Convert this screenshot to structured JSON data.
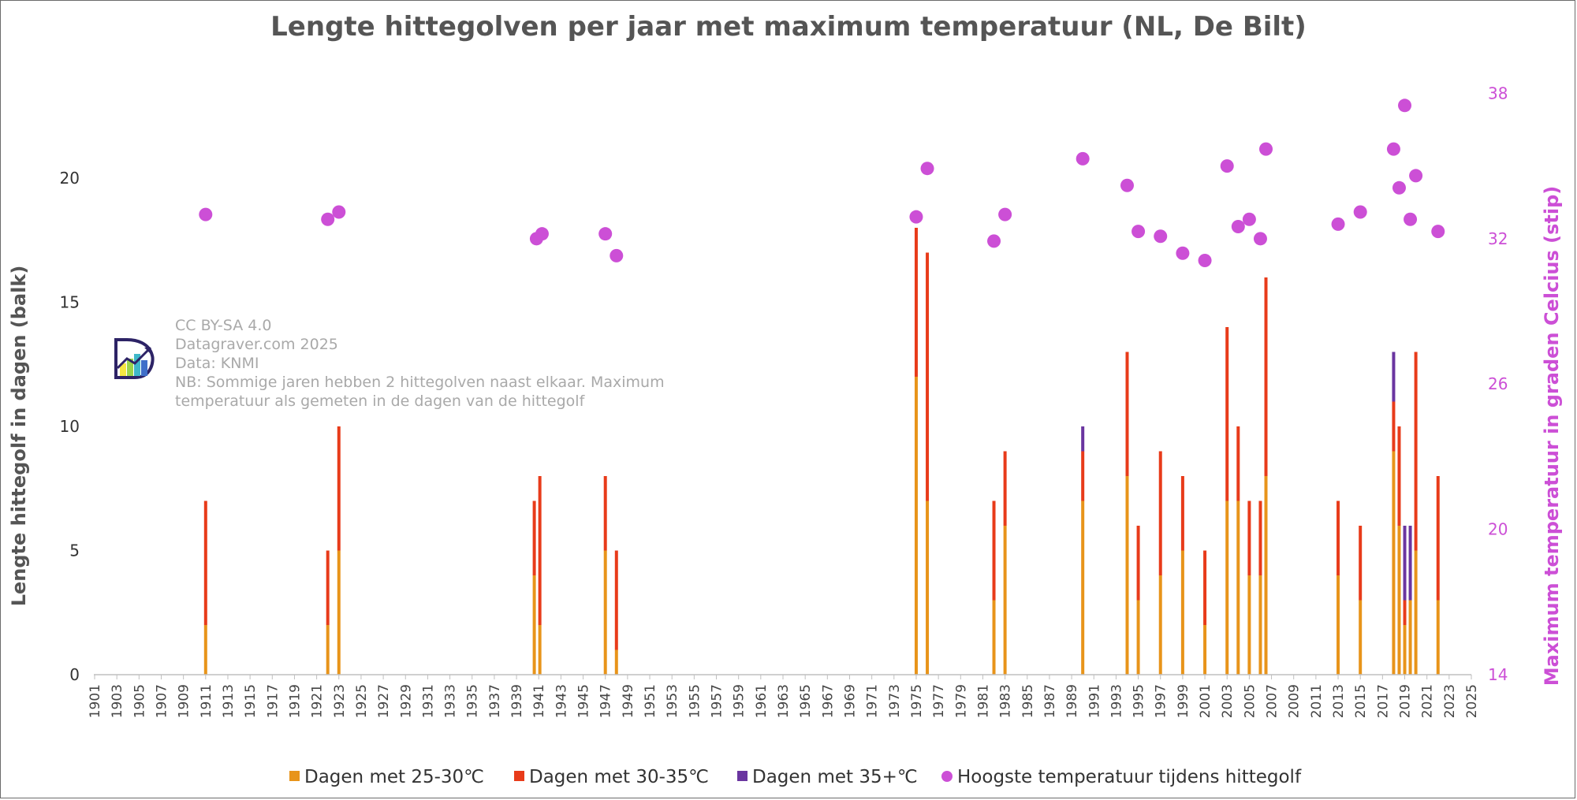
{
  "chart_data": {
    "type": "bar",
    "title": "Lengte hittegolven per jaar met maximum temperatuur (NL, De Bilt)",
    "ylabel": "Lengte hittegolf in dagen (balk)",
    "y2label": "Maximum temperatuur in graden Celcius (stip)",
    "ylim": [
      0,
      24
    ],
    "y2lim": [
      14,
      38.6
    ],
    "yticks": [
      "0",
      "5",
      "10",
      "15",
      "20"
    ],
    "y2ticks": [
      "14",
      "20",
      "26",
      "32",
      "38"
    ],
    "xlim": [
      1901,
      2025
    ],
    "xticks": [
      "1901",
      "1903",
      "1905",
      "1907",
      "1909",
      "1911",
      "1913",
      "1915",
      "1917",
      "1919",
      "1921",
      "1923",
      "1925",
      "1927",
      "1929",
      "1931",
      "1933",
      "1935",
      "1937",
      "1939",
      "1941",
      "1943",
      "1945",
      "1947",
      "1949",
      "1951",
      "1953",
      "1955",
      "1957",
      "1959",
      "1961",
      "1963",
      "1965",
      "1967",
      "1969",
      "1971",
      "1973",
      "1975",
      "1977",
      "1979",
      "1981",
      "1983",
      "1985",
      "1987",
      "1989",
      "1991",
      "1993",
      "1995",
      "1997",
      "1999",
      "2001",
      "2003",
      "2005",
      "2007",
      "2009",
      "2011",
      "2013",
      "2015",
      "2017",
      "2019",
      "2021",
      "2023",
      "2025"
    ],
    "legend_placement": "bottom",
    "grid": false,
    "stacked_series": [
      {
        "name": "Dagen met 25-30℃",
        "color": "#e8941a"
      },
      {
        "name": "Dagen met 30-35℃",
        "color": "#e83b1a"
      },
      {
        "name": "Dagen met 35+℃",
        "color": "#6a35a0"
      }
    ],
    "scatter_series": {
      "name": "Hoogste temperatuur tijdens hittegolf",
      "color": "#cc4fd6"
    },
    "bars": [
      {
        "x": 1911,
        "values": [
          2,
          5,
          0
        ]
      },
      {
        "x": 1922,
        "values": [
          2,
          3,
          0
        ]
      },
      {
        "x": 1923,
        "values": [
          5,
          5,
          0
        ]
      },
      {
        "x": 1940.6,
        "values": [
          4,
          3,
          0
        ]
      },
      {
        "x": 1941.1,
        "values": [
          2,
          6,
          0
        ]
      },
      {
        "x": 1947,
        "values": [
          5,
          3,
          0
        ]
      },
      {
        "x": 1948,
        "values": [
          1,
          4,
          0
        ]
      },
      {
        "x": 1975,
        "values": [
          12,
          6,
          0
        ]
      },
      {
        "x": 1976,
        "values": [
          7,
          10,
          0
        ]
      },
      {
        "x": 1982,
        "values": [
          3,
          4,
          0
        ]
      },
      {
        "x": 1983,
        "values": [
          6,
          3,
          0
        ]
      },
      {
        "x": 1990,
        "values": [
          7,
          2,
          1
        ]
      },
      {
        "x": 1994,
        "values": [
          8,
          5,
          0
        ]
      },
      {
        "x": 1995,
        "values": [
          3,
          3,
          0
        ]
      },
      {
        "x": 1997,
        "values": [
          4,
          5,
          0
        ]
      },
      {
        "x": 1999,
        "values": [
          5,
          3,
          0
        ]
      },
      {
        "x": 2001,
        "values": [
          2,
          3,
          0
        ]
      },
      {
        "x": 2003,
        "values": [
          7,
          7,
          0
        ]
      },
      {
        "x": 2004,
        "values": [
          7,
          3,
          0
        ]
      },
      {
        "x": 2005,
        "values": [
          4,
          3,
          0
        ]
      },
      {
        "x": 2006,
        "values": [
          4,
          3,
          0
        ]
      },
      {
        "x": 2006.5,
        "values": [
          8,
          8,
          0
        ]
      },
      {
        "x": 2013,
        "values": [
          4,
          3,
          0
        ]
      },
      {
        "x": 2015,
        "values": [
          3,
          3,
          0
        ]
      },
      {
        "x": 2018,
        "values": [
          9,
          2,
          2
        ]
      },
      {
        "x": 2018.5,
        "values": [
          6,
          4,
          0
        ]
      },
      {
        "x": 2019,
        "values": [
          2,
          1,
          3
        ]
      },
      {
        "x": 2019.5,
        "values": [
          3,
          0,
          3
        ]
      },
      {
        "x": 2020,
        "values": [
          5,
          8,
          0
        ]
      },
      {
        "x": 2022,
        "values": [
          3,
          5,
          0
        ]
      }
    ],
    "points": [
      {
        "x": 1911,
        "y": 33.0
      },
      {
        "x": 1922,
        "y": 32.8
      },
      {
        "x": 1923,
        "y": 33.1
      },
      {
        "x": 1940.8,
        "y": 32.0
      },
      {
        "x": 1941.3,
        "y": 32.2
      },
      {
        "x": 1947,
        "y": 32.2
      },
      {
        "x": 1948,
        "y": 31.3
      },
      {
        "x": 1975,
        "y": 32.9
      },
      {
        "x": 1976,
        "y": 34.9
      },
      {
        "x": 1982,
        "y": 31.9
      },
      {
        "x": 1983,
        "y": 33.0
      },
      {
        "x": 1990,
        "y": 35.3
      },
      {
        "x": 1994,
        "y": 34.2
      },
      {
        "x": 1995,
        "y": 32.3
      },
      {
        "x": 1997,
        "y": 32.1
      },
      {
        "x": 1999,
        "y": 31.4
      },
      {
        "x": 2001,
        "y": 31.1
      },
      {
        "x": 2003,
        "y": 35.0
      },
      {
        "x": 2004,
        "y": 32.5
      },
      {
        "x": 2005,
        "y": 32.8
      },
      {
        "x": 2006,
        "y": 32.0
      },
      {
        "x": 2006.5,
        "y": 35.7
      },
      {
        "x": 2013,
        "y": 32.6
      },
      {
        "x": 2015,
        "y": 33.1
      },
      {
        "x": 2018,
        "y": 35.7
      },
      {
        "x": 2018.5,
        "y": 34.1
      },
      {
        "x": 2019,
        "y": 37.5
      },
      {
        "x": 2019.5,
        "y": 32.8
      },
      {
        "x": 2020,
        "y": 34.6
      },
      {
        "x": 2022,
        "y": 32.3
      }
    ]
  },
  "watermark": {
    "logo": "datagraver-logo",
    "lines": [
      "CC BY-SA 4.0",
      "Datagraver.com 2025",
      "Data:  KNMI",
      "NB: Sommige jaren hebben 2 hittegolven naast elkaar. Maximum",
      "temperatuur als gemeten in de dagen van de hittegolf"
    ]
  }
}
